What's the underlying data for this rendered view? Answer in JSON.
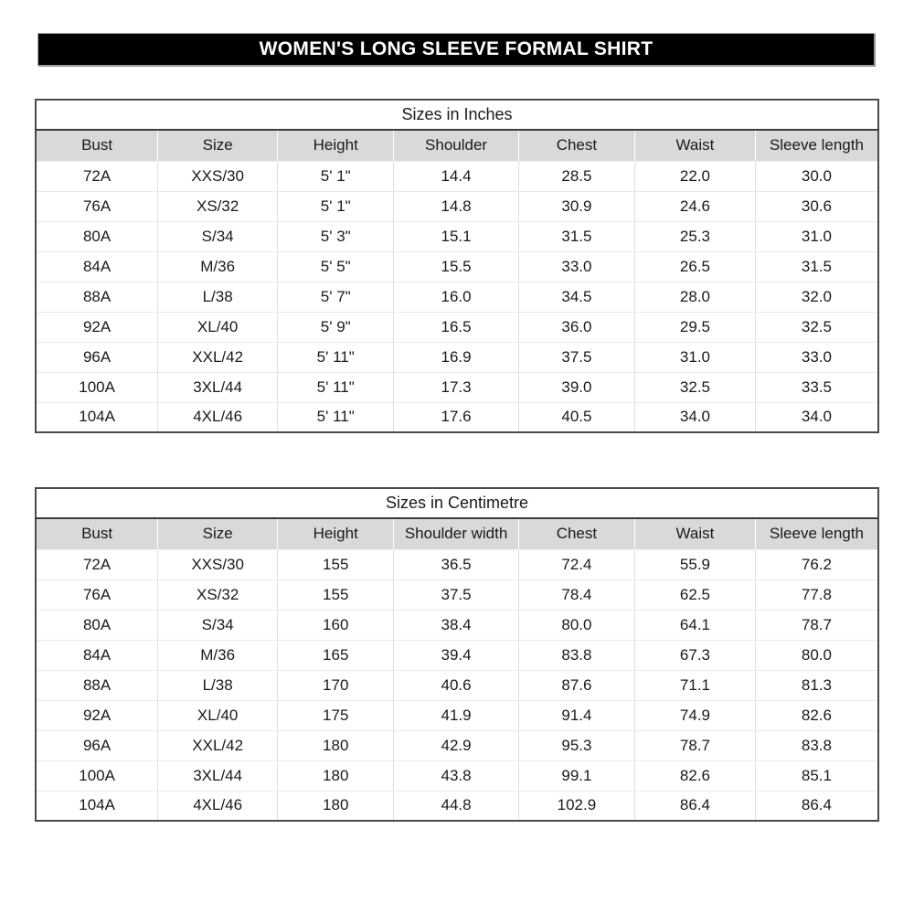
{
  "banner": {
    "title": "WOMEN'S LONG SLEEVE FORMAL SHIRT",
    "bg_color": "#000000",
    "text_color": "#ffffff"
  },
  "colors": {
    "header_row_bg": "#d9d9d9",
    "table_border": "#4a4a4a",
    "row_divider": "#efe8e8",
    "column_divider": "#e2dede"
  },
  "tables": [
    {
      "caption": "Sizes in Inches",
      "columns": [
        "Bust",
        "Size",
        "Height",
        "Shoulder",
        "Chest",
        "Waist",
        "Sleeve length"
      ],
      "rows": [
        [
          "72A",
          "XXS/30",
          "5' 1\"",
          "14.4",
          "28.5",
          "22.0",
          "30.0"
        ],
        [
          "76A",
          "XS/32",
          "5' 1\"",
          "14.8",
          "30.9",
          "24.6",
          "30.6"
        ],
        [
          "80A",
          "S/34",
          "5' 3\"",
          "15.1",
          "31.5",
          "25.3",
          "31.0"
        ],
        [
          "84A",
          "M/36",
          "5' 5\"",
          "15.5",
          "33.0",
          "26.5",
          "31.5"
        ],
        [
          "88A",
          "L/38",
          "5' 7\"",
          "16.0",
          "34.5",
          "28.0",
          "32.0"
        ],
        [
          "92A",
          "XL/40",
          "5' 9\"",
          "16.5",
          "36.0",
          "29.5",
          "32.5"
        ],
        [
          "96A",
          "XXL/42",
          "5' 11\"",
          "16.9",
          "37.5",
          "31.0",
          "33.0"
        ],
        [
          "100A",
          "3XL/44",
          "5' 11\"",
          "17.3",
          "39.0",
          "32.5",
          "33.5"
        ],
        [
          "104A",
          "4XL/46",
          "5' 11\"",
          "17.6",
          "40.5",
          "34.0",
          "34.0"
        ]
      ]
    },
    {
      "caption": "Sizes in Centimetre",
      "columns": [
        "Bust",
        "Size",
        "Height",
        "Shoulder width",
        "Chest",
        "Waist",
        "Sleeve length"
      ],
      "rows": [
        [
          "72A",
          "XXS/30",
          "155",
          "36.5",
          "72.4",
          "55.9",
          "76.2"
        ],
        [
          "76A",
          "XS/32",
          "155",
          "37.5",
          "78.4",
          "62.5",
          "77.8"
        ],
        [
          "80A",
          "S/34",
          "160",
          "38.4",
          "80.0",
          "64.1",
          "78.7"
        ],
        [
          "84A",
          "M/36",
          "165",
          "39.4",
          "83.8",
          "67.3",
          "80.0"
        ],
        [
          "88A",
          "L/38",
          "170",
          "40.6",
          "87.6",
          "71.1",
          "81.3"
        ],
        [
          "92A",
          "XL/40",
          "175",
          "41.9",
          "91.4",
          "74.9",
          "82.6"
        ],
        [
          "96A",
          "XXL/42",
          "180",
          "42.9",
          "95.3",
          "78.7",
          "83.8"
        ],
        [
          "100A",
          "3XL/44",
          "180",
          "43.8",
          "99.1",
          "82.6",
          "85.1"
        ],
        [
          "104A",
          "4XL/46",
          "180",
          "44.8",
          "102.9",
          "86.4",
          "86.4"
        ]
      ]
    }
  ]
}
